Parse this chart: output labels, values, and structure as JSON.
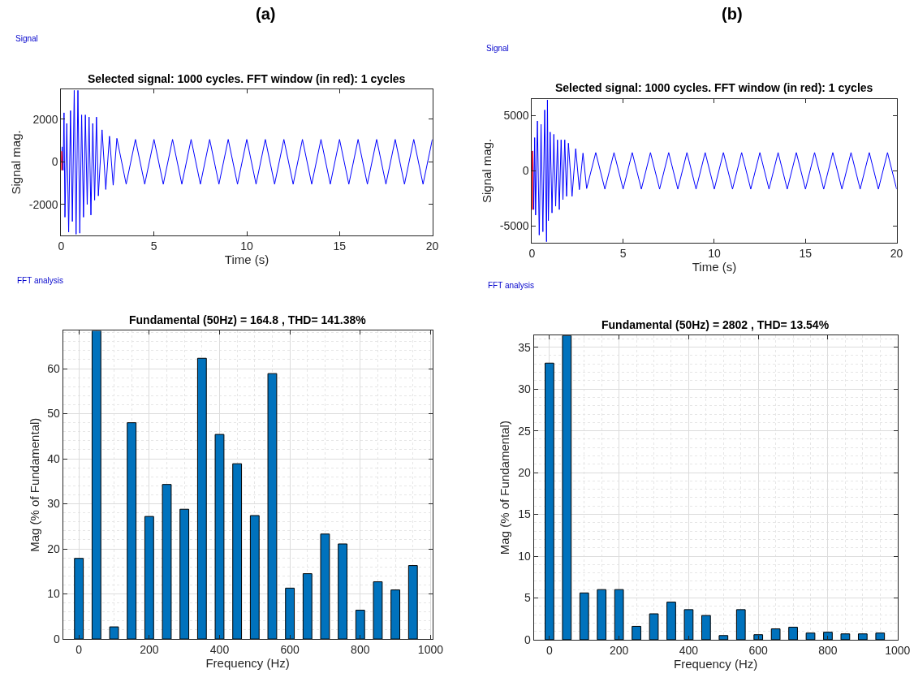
{
  "chart_data": [
    {
      "type": "line",
      "title": "Selected signal: 1000 cycles. FFT window (in red): 1 cycles",
      "xlabel": "Time (s)",
      "ylabel": "Signal mag.",
      "annotations": [
        "(a)",
        "Signal"
      ],
      "xlim": [
        0,
        20
      ],
      "ylim": [
        -3450,
        3400
      ],
      "xticks": [
        0,
        5,
        10,
        15,
        20
      ],
      "yticks": [
        -2000,
        0,
        2000
      ],
      "grid": false,
      "series": [
        {
          "color": "#0000ff",
          "x": [
            0,
            0.05,
            0.1,
            0.15,
            0.2,
            0.3,
            0.4,
            0.5,
            0.6,
            0.7,
            0.8,
            0.9,
            1.0,
            1.1,
            1.2,
            1.3,
            1.4,
            1.5,
            1.6,
            1.7,
            1.8,
            1.9,
            2.0,
            2.2,
            2.4,
            2.6,
            2.8,
            3.0,
            3.5,
            4,
            4.5,
            5,
            5.5,
            6,
            6.5,
            7,
            7.5,
            8,
            8.5,
            9,
            9.5,
            10,
            10.5,
            11,
            11.5,
            12,
            12.5,
            13,
            13.5,
            14,
            14.5,
            15,
            15.5,
            16,
            16.5,
            17,
            17.5,
            18,
            18.5,
            19,
            19.5,
            20
          ],
          "values": [
            0,
            700,
            -400,
            2300,
            -2600,
            1800,
            -3300,
            2400,
            -2800,
            3350,
            -3400,
            3350,
            -3350,
            2200,
            -2600,
            2200,
            -2000,
            2100,
            -2500,
            1800,
            -1800,
            2100,
            -1600,
            1500,
            -1300,
            1200,
            -1100,
            1100,
            -1050,
            1050,
            -1050,
            1050,
            -1050,
            1050,
            -1050,
            1050,
            -1050,
            1050,
            -1050,
            1050,
            -1050,
            1050,
            -1050,
            1050,
            -1050,
            1050,
            -1050,
            1050,
            -1050,
            1050,
            -1050,
            1050,
            -1050,
            1050,
            -1050,
            1050,
            -1050,
            1050,
            -1050,
            1050,
            -1050,
            1050
          ]
        },
        {
          "color": "#ff0000",
          "x": [
            0,
            0.005,
            0.01,
            0.015,
            0.02
          ],
          "values": [
            0,
            500,
            -400,
            300,
            0
          ]
        }
      ]
    },
    {
      "type": "line",
      "title": "Selected signal: 1000 cycles. FFT window (in red): 1 cycles",
      "xlabel": "Time (s)",
      "ylabel": "Signal mag.",
      "annotations": [
        "(b)",
        "Signal"
      ],
      "xlim": [
        0,
        20
      ],
      "ylim": [
        -6500,
        6500
      ],
      "xticks": [
        0,
        5,
        10,
        15,
        20
      ],
      "yticks": [
        -5000,
        0,
        5000
      ],
      "grid": false,
      "series": [
        {
          "color": "#0000ff",
          "x": [
            0,
            0.05,
            0.1,
            0.15,
            0.2,
            0.3,
            0.4,
            0.5,
            0.6,
            0.7,
            0.8,
            0.85,
            0.9,
            1.0,
            1.1,
            1.2,
            1.3,
            1.4,
            1.5,
            1.6,
            1.7,
            1.8,
            1.9,
            2.0,
            2.2,
            2.4,
            2.6,
            2.8,
            3.0,
            3.5,
            4,
            4.5,
            5,
            5.5,
            6,
            6.5,
            7,
            7.5,
            8,
            8.5,
            9,
            9.5,
            10,
            10.5,
            11,
            11.5,
            12,
            12.5,
            13,
            13.5,
            14,
            14.5,
            15,
            15.5,
            16,
            16.5,
            17,
            17.5,
            18,
            18.5,
            19,
            19.5,
            20
          ],
          "values": [
            0,
            1800,
            -3500,
            3000,
            -4000,
            4500,
            -5800,
            4200,
            -5500,
            5500,
            -6400,
            6400,
            -4500,
            3500,
            -3800,
            3300,
            -3200,
            2800,
            -3500,
            2800,
            -2600,
            2800,
            -2300,
            2500,
            -2300,
            2000,
            -1700,
            1600,
            -1600,
            1650,
            -1650,
            1650,
            -1650,
            1650,
            -1650,
            1650,
            -1650,
            1650,
            -1650,
            1650,
            -1650,
            1650,
            -1650,
            1650,
            -1650,
            1650,
            -1650,
            1650,
            -1650,
            1650,
            -1650,
            1650,
            -1650,
            1650,
            -1650,
            1650,
            -1650,
            1650,
            -1650,
            1650,
            -1650,
            1650,
            -1650
          ]
        },
        {
          "color": "#ff0000",
          "x": [
            0,
            0.005,
            0.01,
            0.015,
            0.02
          ],
          "values": [
            0,
            1800,
            -3500,
            1500,
            0
          ]
        }
      ]
    },
    {
      "type": "bar",
      "title": "Fundamental (50Hz) = 164.8 , THD= 141.38%",
      "xlabel": "Frequency (Hz)",
      "ylabel": "Mag (% of Fundamental)",
      "annotations": [
        "FFT analysis"
      ],
      "xlim": [
        -45,
        1005
      ],
      "ylim": [
        0,
        68.4
      ],
      "xticks": [
        0,
        200,
        400,
        600,
        800,
        1000
      ],
      "yticks": [
        0,
        10,
        20,
        30,
        40,
        50,
        60
      ],
      "grid": true,
      "x": [
        0,
        50,
        100,
        150,
        200,
        250,
        300,
        350,
        400,
        450,
        500,
        550,
        600,
        650,
        700,
        750,
        800,
        850,
        900,
        950
      ],
      "series": [
        {
          "color": "#0072bd",
          "values": [
            17.9,
            68.4,
            2.7,
            48,
            27.2,
            34.3,
            28.8,
            62.3,
            45.4,
            38.9,
            27.4,
            58.9,
            11.3,
            14.5,
            23.3,
            21.1,
            6.4,
            12.7,
            10.9,
            16.3
          ]
        }
      ]
    },
    {
      "type": "bar",
      "title": "Fundamental (50Hz) = 2802 , THD= 13.54%",
      "xlabel": "Frequency (Hz)",
      "ylabel": "Mag (% of Fundamental)",
      "annotations": [
        "FFT analysis"
      ],
      "xlim": [
        -45,
        1000
      ],
      "ylim": [
        0,
        36.4
      ],
      "xticks": [
        0,
        200,
        400,
        600,
        800,
        1000
      ],
      "yticks": [
        0,
        5,
        10,
        15,
        20,
        25,
        30,
        35
      ],
      "grid": true,
      "x": [
        0,
        50,
        100,
        150,
        200,
        250,
        300,
        350,
        400,
        450,
        500,
        550,
        600,
        650,
        700,
        750,
        800,
        850,
        900,
        950
      ],
      "series": [
        {
          "color": "#0072bd",
          "values": [
            33.1,
            36.4,
            5.6,
            6.0,
            6.0,
            1.6,
            3.1,
            4.5,
            3.6,
            2.9,
            0.5,
            3.6,
            0.6,
            1.3,
            1.5,
            0.8,
            0.9,
            0.7,
            0.7,
            0.8
          ]
        }
      ]
    }
  ]
}
